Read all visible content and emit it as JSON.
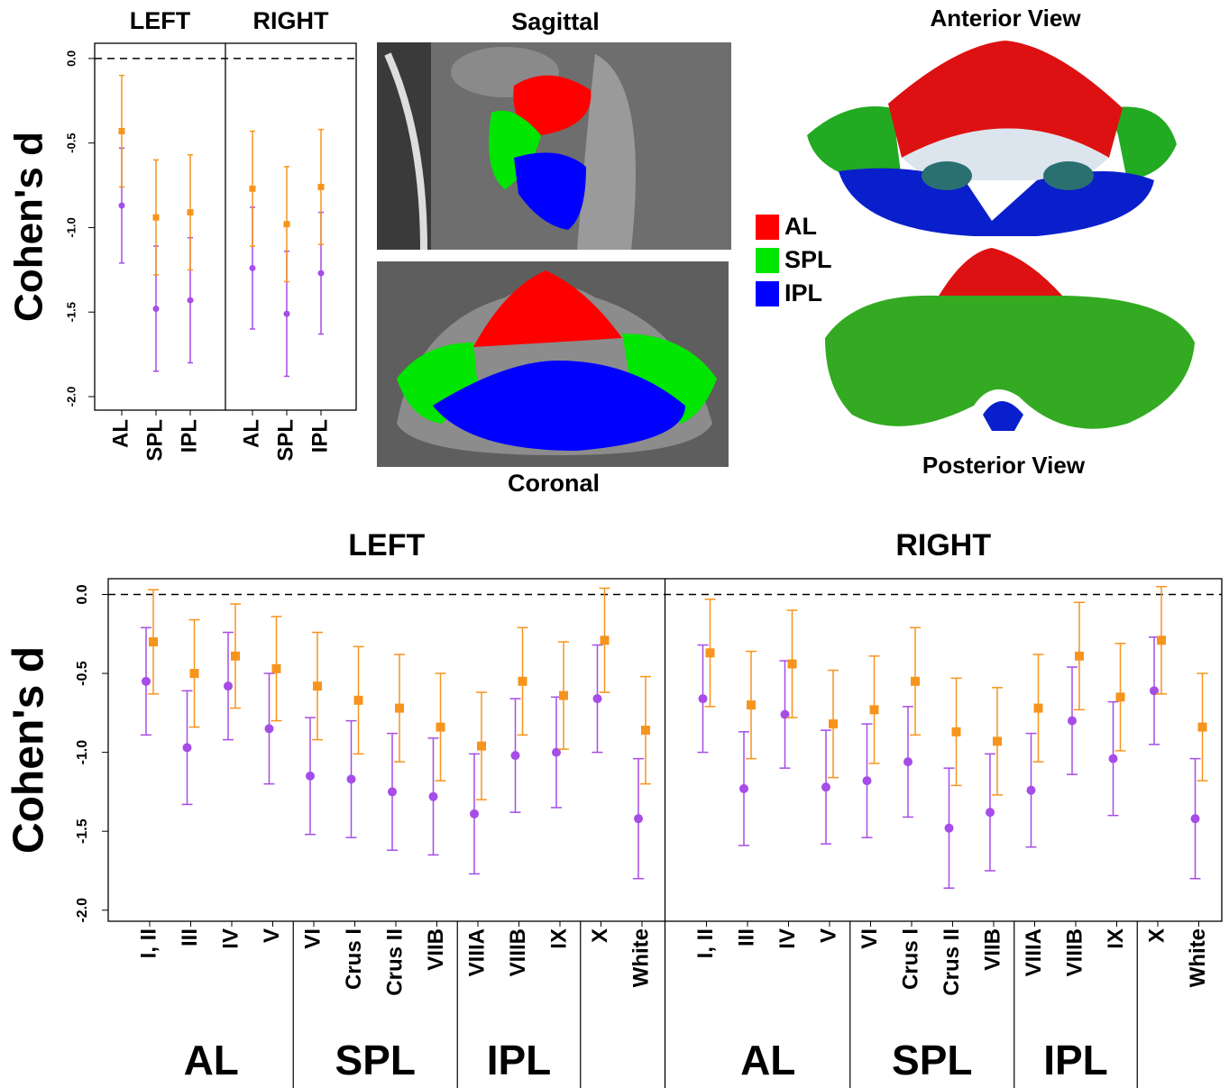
{
  "chart_data": [
    {
      "type": "errorbar",
      "ylabel": "Cohen's d",
      "categories": [
        "AL",
        "SPL",
        "IPL"
      ],
      "ylim": [
        -2.08,
        0.09
      ],
      "yticks": [
        {
          "value": 0,
          "label": "0.0"
        },
        -0.5,
        {
          "value": -1,
          "label": "-1.0"
        },
        -1.5,
        {
          "value": -2,
          "label": "-2.0"
        }
      ],
      "reference_line": 0,
      "panels": [
        {
          "title": "LEFT",
          "series": [
            {
              "color": "#a64ce8",
              "marker": "circle",
              "values": [
                -0.87,
                -1.48,
                -1.43
              ],
              "errors": [
                0.34,
                0.37,
                0.37
              ]
            },
            {
              "color": "#f7941d",
              "marker": "square",
              "values": [
                -0.43,
                -0.94,
                -0.91
              ],
              "errors": [
                0.33,
                0.34,
                0.34
              ]
            }
          ]
        },
        {
          "title": "RIGHT",
          "series": [
            {
              "color": "#a64ce8",
              "marker": "circle",
              "values": [
                -1.24,
                -1.51,
                -1.27
              ],
              "errors": [
                0.36,
                0.37,
                0.36
              ]
            },
            {
              "color": "#f7941d",
              "marker": "square",
              "values": [
                -0.77,
                -0.98,
                -0.76
              ],
              "errors": [
                0.34,
                0.34,
                0.34
              ]
            }
          ]
        }
      ]
    },
    {
      "type": "errorbar",
      "ylabel": "Cohen's d",
      "categories": [
        "I, II",
        "III",
        "IV",
        "V",
        "VI",
        "Crus I",
        "Crus II",
        "VIIB",
        "VIIIA",
        "VIIIB",
        "IX",
        "X",
        "White"
      ],
      "groups": [
        {
          "label": "AL",
          "count": 4
        },
        {
          "label": "SPL",
          "count": 4
        },
        {
          "label": "IPL",
          "count": 3
        }
      ],
      "ylim": [
        -2.07,
        0.1
      ],
      "yticks": [
        {
          "value": 0,
          "label": "0.0"
        },
        -0.5,
        {
          "value": -1,
          "label": "-1.0"
        },
        -1.5,
        {
          "value": -2,
          "label": "-2.0"
        }
      ],
      "reference_line": 0,
      "panels": [
        {
          "title": "LEFT",
          "series": [
            {
              "color": "#a64ce8",
              "marker": "circle",
              "values": [
                -0.55,
                -0.97,
                -0.58,
                -0.85,
                -1.15,
                -1.17,
                -1.25,
                -1.28,
                -1.39,
                -1.02,
                -1.0,
                -0.66,
                -1.42
              ],
              "errors": [
                0.34,
                0.36,
                0.34,
                0.35,
                0.37,
                0.37,
                0.37,
                0.37,
                0.38,
                0.36,
                0.35,
                0.34,
                0.38
              ]
            },
            {
              "color": "#f7941d",
              "marker": "square",
              "values": [
                -0.3,
                -0.5,
                -0.39,
                -0.47,
                -0.58,
                -0.67,
                -0.72,
                -0.84,
                -0.96,
                -0.55,
                -0.64,
                -0.29,
                -0.86
              ],
              "errors": [
                0.33,
                0.34,
                0.33,
                0.33,
                0.34,
                0.34,
                0.34,
                0.34,
                0.34,
                0.34,
                0.34,
                0.33,
                0.34
              ]
            }
          ]
        },
        {
          "title": "RIGHT",
          "series": [
            {
              "color": "#a64ce8",
              "marker": "circle",
              "values": [
                -0.66,
                -1.23,
                -0.76,
                -1.22,
                -1.18,
                -1.06,
                -1.48,
                -1.38,
                -1.24,
                -0.8,
                -1.04,
                -0.61,
                -1.42
              ],
              "errors": [
                0.34,
                0.36,
                0.34,
                0.36,
                0.36,
                0.35,
                0.38,
                0.37,
                0.36,
                0.34,
                0.36,
                0.34,
                0.38
              ]
            },
            {
              "color": "#f7941d",
              "marker": "square",
              "values": [
                -0.37,
                -0.7,
                -0.44,
                -0.82,
                -0.73,
                -0.55,
                -0.87,
                -0.93,
                -0.72,
                -0.39,
                -0.65,
                -0.29,
                -0.84
              ],
              "errors": [
                0.34,
                0.34,
                0.34,
                0.34,
                0.34,
                0.34,
                0.34,
                0.34,
                0.34,
                0.34,
                0.34,
                0.34,
                0.34
              ]
            }
          ]
        }
      ]
    }
  ],
  "figure": {
    "sagittal_label": "Sagittal",
    "coronal_label": "Coronal",
    "anterior_label": "Anterior View",
    "posterior_label": "Posterior View",
    "legend": [
      {
        "label": "AL",
        "color": "#ff0000"
      },
      {
        "label": "SPL",
        "color": "#00e600"
      },
      {
        "label": "IPL",
        "color": "#0000ff"
      }
    ]
  }
}
